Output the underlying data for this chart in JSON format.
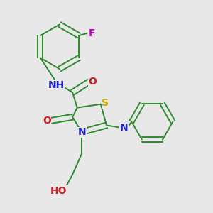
{
  "bg_color": "#e8e8e8",
  "bond_color": "#2d8a2d",
  "atom_colors": {
    "N": "#2020cc",
    "O": "#cc2020",
    "S": "#ccaa00",
    "F": "#cc00cc",
    "H": "#888888",
    "C": "#2d8a2d"
  },
  "font_size": 10,
  "lw": 1.4
}
